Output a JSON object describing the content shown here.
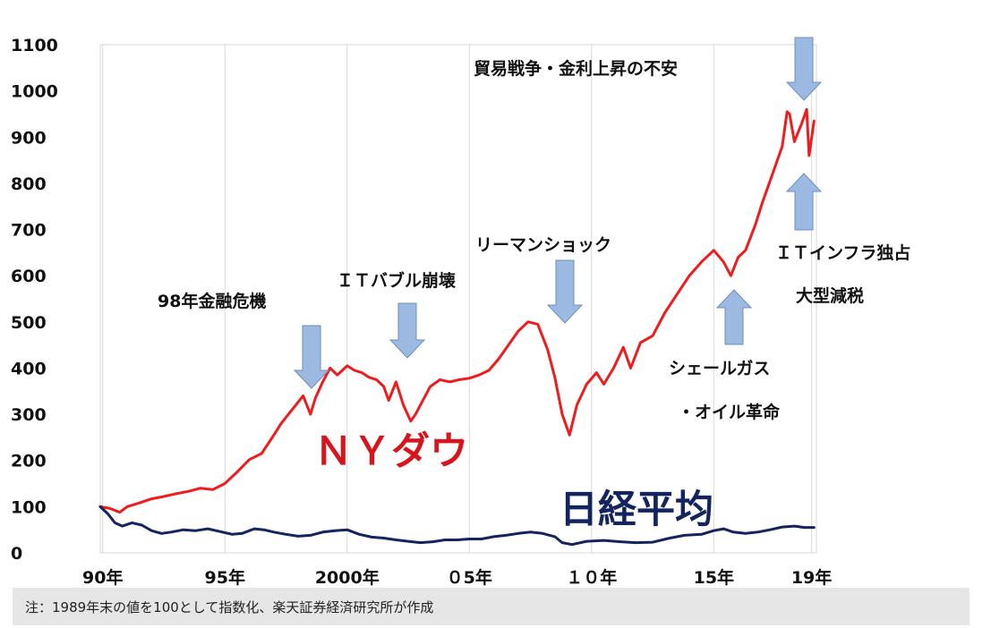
{
  "chart_data": {
    "type": "line",
    "title": "",
    "xlabel": "",
    "ylabel": "",
    "ylim": [
      0,
      1100
    ],
    "xlim": [
      1989.9,
      2019.2
    ],
    "grid": "vertical lines at x ticks",
    "yticks": [
      "0",
      "100",
      "200",
      "300",
      "400",
      "500",
      "600",
      "700",
      "800",
      "900",
      "1000",
      "1100"
    ],
    "ytick_values": [
      0,
      100,
      200,
      300,
      400,
      500,
      600,
      700,
      800,
      900,
      1000,
      1100
    ],
    "xticks": [
      "90年",
      "95年",
      "2000年",
      "０5年",
      "１０年",
      "15年",
      "19年"
    ],
    "xtick_values": [
      1990,
      1995,
      2000,
      2005,
      2010,
      2015,
      2019
    ],
    "series": [
      {
        "name": "ＮＹダウ",
        "color": "#ee1c1c",
        "x": [
          1989.9,
          1990.3,
          1990.7,
          1991,
          1991.5,
          1992,
          1992.5,
          1993,
          1993.5,
          1994,
          1994.5,
          1995,
          1995.5,
          1996,
          1996.5,
          1997,
          1997.3,
          1997.6,
          1997.9,
          1998.2,
          1998.5,
          1998.7,
          1999,
          1999.3,
          1999.6,
          2000,
          2000.3,
          2000.6,
          2000.9,
          2001.2,
          2001.5,
          2001.7,
          2002,
          2002.3,
          2002.6,
          2002.8,
          2003.1,
          2003.4,
          2003.8,
          2004.2,
          2004.6,
          2005,
          2005.4,
          2005.8,
          2006.2,
          2006.6,
          2007,
          2007.4,
          2007.8,
          2008.2,
          2008.5,
          2008.8,
          2009.1,
          2009.4,
          2009.8,
          2010.2,
          2010.5,
          2010.9,
          2011.3,
          2011.6,
          2012,
          2012.5,
          2013,
          2013.5,
          2014,
          2014.5,
          2015,
          2015.4,
          2015.7,
          2016,
          2016.3,
          2016.7,
          2017,
          2017.4,
          2017.8,
          2018,
          2018.1,
          2018.3,
          2018.6,
          2018.8,
          2018.9,
          2019.1
        ],
        "values": [
          100,
          96,
          88,
          100,
          108,
          117,
          122,
          128,
          133,
          140,
          137,
          150,
          175,
          202,
          215,
          255,
          280,
          300,
          320,
          340,
          300,
          335,
          370,
          400,
          385,
          405,
          395,
          390,
          380,
          375,
          360,
          330,
          370,
          320,
          285,
          300,
          330,
          360,
          375,
          370,
          375,
          378,
          385,
          395,
          420,
          450,
          480,
          500,
          495,
          440,
          380,
          300,
          255,
          320,
          365,
          390,
          365,
          400,
          445,
          400,
          455,
          470,
          520,
          560,
          600,
          630,
          655,
          630,
          600,
          640,
          655,
          710,
          760,
          820,
          880,
          955,
          950,
          890,
          930,
          960,
          860,
          935
        ]
      },
      {
        "name": "日経平均",
        "color": "#14245e",
        "x": [
          1989.9,
          1990.2,
          1990.5,
          1990.8,
          1991.2,
          1991.6,
          1992,
          1992.4,
          1992.8,
          1993.3,
          1993.8,
          1994.3,
          1994.8,
          1995.3,
          1995.7,
          1996.2,
          1996.6,
          1997,
          1997.5,
          1998,
          1998.5,
          1999,
          1999.5,
          2000,
          2000.5,
          2001,
          2001.5,
          2002,
          2002.5,
          2003,
          2003.5,
          2004,
          2004.5,
          2005,
          2005.5,
          2006,
          2006.5,
          2007,
          2007.5,
          2008,
          2008.5,
          2008.8,
          2009.2,
          2009.8,
          2010.5,
          2011.2,
          2011.8,
          2012.5,
          2013.2,
          2013.8,
          2014.5,
          2015,
          2015.4,
          2015.8,
          2016.3,
          2016.8,
          2017.3,
          2017.8,
          2018.3,
          2018.7,
          2019.1
        ],
        "values": [
          100,
          85,
          65,
          58,
          65,
          60,
          48,
          42,
          45,
          50,
          48,
          52,
          46,
          40,
          42,
          52,
          50,
          45,
          40,
          36,
          38,
          45,
          48,
          50,
          40,
          34,
          32,
          28,
          25,
          22,
          24,
          28,
          28,
          30,
          30,
          35,
          38,
          42,
          45,
          42,
          35,
          22,
          18,
          25,
          27,
          24,
          22,
          23,
          32,
          38,
          40,
          48,
          52,
          45,
          42,
          45,
          50,
          56,
          58,
          55,
          55
        ]
      }
    ],
    "annotations": {
      "boom_label": "貿易戦争・金利上昇の不安",
      "asia_label": "98年金融危機",
      "it_bubble_label": "ＩＴバブル崩壊",
      "lehman_label": "リーマンショック",
      "shale_label_1": "シェールガス",
      "shale_label_2": "・オイル革命",
      "it_infra_label_1": "ＩＴインフラ独占",
      "it_infra_label_2": "大型減税",
      "ny_label": "ＮＹダウ",
      "nikkei_label": "日経平均"
    },
    "arrow_color": "#9bb9e1"
  },
  "note": "注：1989年末の値を100として指数化、楽天証券経済研究所が作成"
}
